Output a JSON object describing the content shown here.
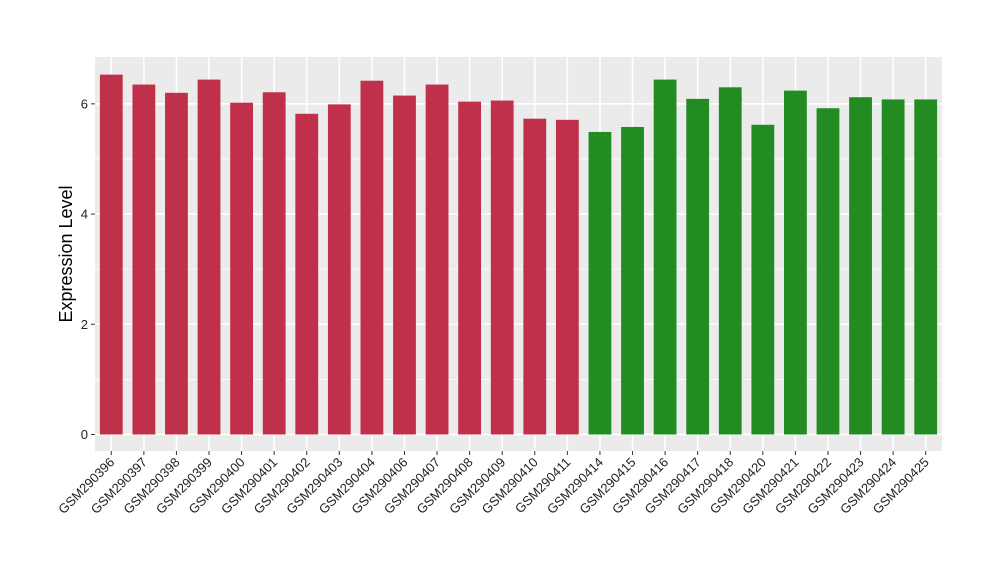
{
  "chart_data": {
    "type": "bar",
    "title": "",
    "xlabel": "",
    "ylabel": "Expression Level",
    "ylim": [
      -0.3,
      6.85
    ],
    "yticks": [
      0,
      2,
      4,
      6
    ],
    "ytick_labels": [
      "0",
      "2",
      "4",
      "6"
    ],
    "grid": true,
    "legend": "none",
    "categories": [
      "GSM290396",
      "GSM290397",
      "GSM290398",
      "GSM290399",
      "GSM290400",
      "GSM290401",
      "GSM290402",
      "GSM290403",
      "GSM290404",
      "GSM290406",
      "GSM290407",
      "GSM290408",
      "GSM290409",
      "GSM290410",
      "GSM290411",
      "GSM290414",
      "GSM290415",
      "GSM290416",
      "GSM290417",
      "GSM290418",
      "GSM290420",
      "GSM290421",
      "GSM290422",
      "GSM290423",
      "GSM290424",
      "GSM290425"
    ],
    "values": [
      6.53,
      6.35,
      6.2,
      6.44,
      6.02,
      6.21,
      5.82,
      5.99,
      6.42,
      6.15,
      6.35,
      6.04,
      6.06,
      5.73,
      5.71,
      5.49,
      5.58,
      6.44,
      6.09,
      6.3,
      5.62,
      6.24,
      5.92,
      6.12,
      6.08,
      6.08
    ],
    "colors": [
      "#C0304A",
      "#C0304A",
      "#C0304A",
      "#C0304A",
      "#C0304A",
      "#C0304A",
      "#C0304A",
      "#C0304A",
      "#C0304A",
      "#C0304A",
      "#C0304A",
      "#C0304A",
      "#C0304A",
      "#C0304A",
      "#C0304A",
      "#228B22",
      "#228B22",
      "#228B22",
      "#228B22",
      "#228B22",
      "#228B22",
      "#228B22",
      "#228B22",
      "#228B22",
      "#228B22",
      "#228B22"
    ],
    "panel_background": "#EBEBEB",
    "grid_color": "#FFFFFF"
  }
}
